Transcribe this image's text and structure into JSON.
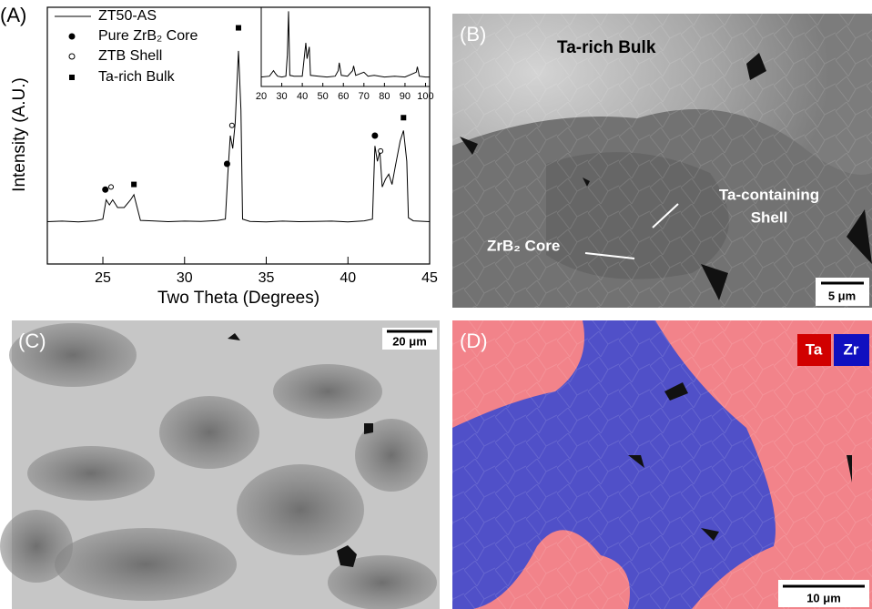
{
  "chart_data": [
    {
      "type": "line",
      "panel_label": "(A)",
      "xlabel": "Two Theta (Degrees)",
      "ylabel": "Intensity (A.U.)",
      "xlim": [
        21.6,
        45
      ],
      "xticks": [
        25,
        30,
        35,
        40,
        45
      ],
      "ylim": [
        0,
        100
      ],
      "series": [
        {
          "name": "ZT50-AS",
          "marker": "line",
          "color": "#000000",
          "x": [
            21.6,
            22.5,
            23.5,
            24.5,
            25.0,
            25.2,
            25.4,
            25.6,
            25.9,
            26.3,
            26.7,
            26.9,
            27.1,
            27.3,
            28,
            29,
            30,
            31,
            32,
            32.5,
            32.65,
            32.8,
            32.95,
            33.1,
            33.3,
            33.45,
            33.55,
            34,
            35,
            36,
            37,
            38,
            39,
            40,
            41,
            41.5,
            41.65,
            41.8,
            41.95,
            42.1,
            42.3,
            42.5,
            42.7,
            42.9,
            43.2,
            43.4,
            43.6,
            43.7,
            44,
            45
          ],
          "values": [
            16.5,
            16.7,
            16.4,
            16.8,
            17.5,
            25,
            23,
            25,
            22,
            22,
            25,
            27,
            22,
            17,
            16.8,
            16.5,
            16.7,
            16.6,
            16.9,
            17.5,
            35,
            50,
            45,
            55,
            83,
            60,
            17.5,
            16.6,
            16.4,
            16.7,
            16.5,
            16.6,
            16.7,
            16.4,
            16.8,
            17.5,
            46,
            40,
            44,
            30,
            33,
            35,
            31,
            38,
            48,
            52,
            40,
            18,
            16.8,
            16.5
          ]
        },
        {
          "name": "Pure ZrB₂ Core",
          "marker": "dot",
          "color": "#000000",
          "x": [
            25.15,
            32.6,
            41.65
          ],
          "values": [
            29,
            39,
            50
          ]
        },
        {
          "name": "ZTB Shell",
          "marker": "circle",
          "color": "#000000",
          "x": [
            25.5,
            32.9,
            42.0
          ],
          "values": [
            30,
            54,
            44
          ]
        },
        {
          "name": "Ta-rich Bulk",
          "marker": "square",
          "color": "#000000",
          "x": [
            26.9,
            33.3,
            43.4
          ],
          "values": [
            31,
            92,
            57
          ]
        }
      ]
    },
    {
      "type": "line",
      "xlim": [
        20,
        102
      ],
      "xticks": [
        20,
        30,
        40,
        50,
        60,
        70,
        80,
        90,
        100
      ],
      "ylim": [
        0,
        100
      ],
      "series": [
        {
          "marker": "line",
          "color": "#000000",
          "x": [
            20,
            24,
            26,
            27,
            28,
            30,
            32,
            32.7,
            33.3,
            33.9,
            36,
            40,
            41.7,
            42.3,
            43.4,
            44,
            48,
            52,
            56,
            57.5,
            58,
            59,
            62,
            64.5,
            65,
            66,
            70,
            72,
            75,
            80,
            85,
            90,
            95.5,
            96,
            97,
            100,
            102
          ],
          "values": [
            12,
            13,
            20,
            16,
            13,
            12,
            13,
            40,
            95,
            14,
            13,
            13,
            55,
            35,
            50,
            14,
            13,
            12,
            13,
            20,
            30,
            14,
            13,
            20,
            26,
            14,
            18,
            13,
            14,
            12,
            13,
            12,
            18,
            25,
            13,
            12,
            12
          ]
        }
      ]
    }
  ],
  "panels": [
    {
      "label": "(B)",
      "annotations": [
        "Ta-rich Bulk",
        "Ta-containing",
        "Shell",
        "ZrB₂ Core"
      ],
      "scale_bar": "5 μm"
    },
    {
      "label": "(C)",
      "scale_bar": "20 μm"
    },
    {
      "label": "(D)",
      "legend": [
        "Ta",
        "Zr"
      ],
      "scale_bar": "10 μm"
    }
  ]
}
